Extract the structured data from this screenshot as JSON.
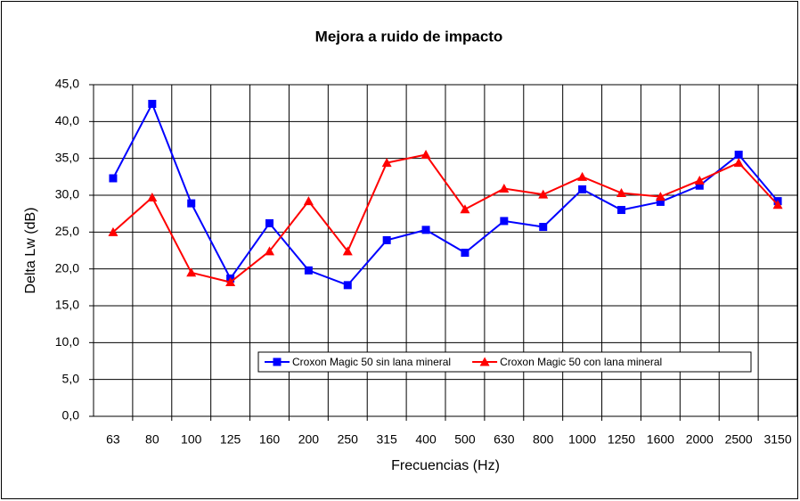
{
  "chart_data": {
    "type": "line",
    "title": "Mejora a ruido de impacto",
    "x_label": "Frecuencias (Hz)",
    "y_label": "Delta Lw (dB)",
    "categories": [
      "63",
      "80",
      "100",
      "125",
      "160",
      "200",
      "250",
      "315",
      "400",
      "500",
      "630",
      "800",
      "1000",
      "1250",
      "1600",
      "2000",
      "2500",
      "3150"
    ],
    "series": [
      {
        "name": "Croxon Magic 50 sin lana mineral",
        "color": "#0000ff",
        "marker": "square",
        "values": [
          32.3,
          42.4,
          28.9,
          18.7,
          26.2,
          19.8,
          17.8,
          23.9,
          25.3,
          22.2,
          26.5,
          25.7,
          30.8,
          28.0,
          29.1,
          31.3,
          35.5,
          29.2
        ]
      },
      {
        "name": "Croxon Magic 50 con lana mineral",
        "color": "#ff0000",
        "marker": "triangle",
        "values": [
          25.0,
          29.7,
          19.5,
          18.2,
          22.4,
          29.2,
          22.4,
          34.4,
          35.5,
          28.1,
          30.9,
          30.1,
          32.5,
          30.3,
          29.8,
          32.0,
          34.4,
          28.7
        ]
      }
    ],
    "ylim": [
      0,
      45
    ],
    "yticks": [
      {
        "value": 0,
        "label": "0,0"
      },
      {
        "value": 5,
        "label": "5,0"
      },
      {
        "value": 10,
        "label": "10,0"
      },
      {
        "value": 15,
        "label": "15,0"
      },
      {
        "value": 20,
        "label": "20,0"
      },
      {
        "value": 25,
        "label": "25,0"
      },
      {
        "value": 30,
        "label": "30,0"
      },
      {
        "value": 35,
        "label": "35,0"
      },
      {
        "value": 40,
        "label": "40,0"
      },
      {
        "value": 45,
        "label": "45,0"
      }
    ],
    "grid": true
  }
}
